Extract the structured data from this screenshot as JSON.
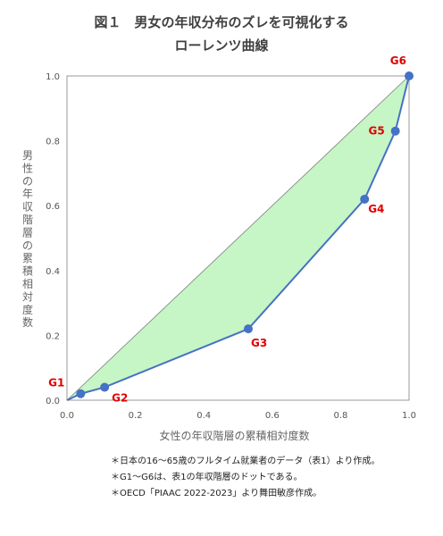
{
  "chart_data": {
    "type": "line",
    "title": [
      "図１　男女の年収分布のズレを可視化する",
      "ローレンツ曲線"
    ],
    "xlabel": "女性の年収階層の累積相対度数",
    "ylabel": "男性の年収階層の累積相対度数",
    "xlim": [
      0,
      1.0
    ],
    "ylim": [
      0,
      1.0
    ],
    "x_ticks": [
      "0.0",
      "0.2",
      "0.4",
      "0.6",
      "0.8",
      "1.0"
    ],
    "y_ticks": [
      "0.0",
      "0.2",
      "0.4",
      "0.6",
      "0.8",
      "1.0"
    ],
    "grid": false,
    "points": [
      {
        "label": "G1",
        "x": 0.04,
        "y": 0.02
      },
      {
        "label": "G2",
        "x": 0.11,
        "y": 0.04
      },
      {
        "label": "G3",
        "x": 0.53,
        "y": 0.22
      },
      {
        "label": "G4",
        "x": 0.87,
        "y": 0.62
      },
      {
        "label": "G5",
        "x": 0.96,
        "y": 0.83
      },
      {
        "label": "G6",
        "x": 1.0,
        "y": 1.0
      }
    ],
    "colors": {
      "curve": "#4472C4",
      "fill": "#C6F5C6",
      "diagonal": "#7F7F7F",
      "point_label": "#E00000"
    }
  },
  "notes": [
    "＊日本の16〜65歳のフルタイム就業者のデータ（表1）より作成。",
    "＊G1〜G6は、表1の年収階層のドットである。",
    "＊OECD「PIAAC 2022-2023」より舞田敏彦作成。"
  ]
}
